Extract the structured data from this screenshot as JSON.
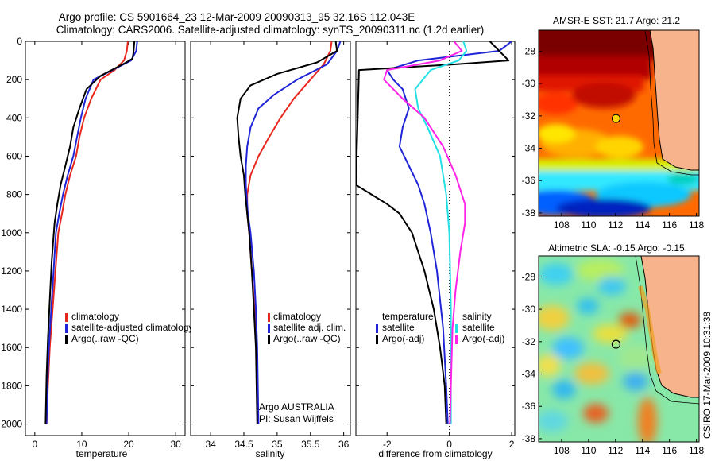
{
  "figure": {
    "title_line1": "Argo profile: CS 5901664_23 12-Mar-2009 20090313_95 32.16S 112.043E",
    "title_line2": "Climatology: CARS2006. Satellite-adjusted climatology: synTS_20090311.nc (1.2d earlier)",
    "side_stamp": "CSIRO 17-Mar-2009 10:31:38",
    "credit_line1": "Argo AUSTRALIA",
    "credit_line2": "PI: Susan Wijffels"
  },
  "colors": {
    "climatology": "#e8281e",
    "satellite": "#1f25d6",
    "argo": "#000000",
    "sat_salinity": "#22e0e6",
    "argo_adj_salinity": "#ff22e8",
    "land": "#f7b48c",
    "coast": "#000000"
  },
  "chart_data": [
    {
      "type": "line",
      "id": "temperature",
      "xlabel": "temperature",
      "ylabel": "",
      "xlim": [
        -2,
        32
      ],
      "ylim": [
        2060,
        0
      ],
      "xticks": [
        0,
        10,
        20,
        30
      ],
      "yticks": [
        0,
        200,
        400,
        600,
        800,
        1000,
        1200,
        1400,
        1600,
        1800,
        2000
      ],
      "series": [
        {
          "name": "climatology",
          "color_key": "climatology",
          "x": [
            19.8,
            19.6,
            19.0,
            17.0,
            14.0,
            12.0,
            10.5,
            9.5,
            8.8,
            7.5,
            6.5,
            5.8,
            5.0,
            4.4,
            3.8,
            3.2,
            2.8,
            2.5
          ],
          "y": [
            0,
            50,
            100,
            150,
            200,
            300,
            400,
            500,
            600,
            700,
            800,
            900,
            1000,
            1200,
            1400,
            1600,
            1800,
            2000
          ]
        },
        {
          "name": "satellite-adjusted climatology",
          "color_key": "satellite",
          "x": [
            21.8,
            21.6,
            20.5,
            16.5,
            12.5,
            10.8,
            9.8,
            9.0,
            8.2,
            7.0,
            6.0,
            5.2,
            4.5,
            4.0,
            3.5,
            3.0,
            2.7,
            2.5
          ],
          "y": [
            0,
            50,
            100,
            150,
            200,
            300,
            400,
            500,
            600,
            700,
            800,
            900,
            1000,
            1200,
            1400,
            1600,
            1800,
            2000
          ]
        },
        {
          "name": "Argo(..raw -QC)",
          "color_key": "argo",
          "x": [
            21.2,
            21.0,
            20.8,
            19.5,
            14.0,
            11.0,
            9.5,
            8.2,
            7.5,
            6.5,
            5.5,
            4.8,
            4.2,
            3.6,
            3.2,
            2.8,
            2.5,
            2.3
          ],
          "y": [
            0,
            60,
            90,
            110,
            180,
            250,
            350,
            450,
            550,
            650,
            750,
            850,
            950,
            1150,
            1350,
            1550,
            1750,
            2000
          ]
        }
      ],
      "legend": {
        "placement": "bottom-right"
      }
    },
    {
      "type": "line",
      "id": "salinity",
      "xlabel": "salinity",
      "ylabel": "",
      "xlim": [
        33.7,
        36.1
      ],
      "ylim": [
        2060,
        0
      ],
      "xticks": [
        34,
        34.5,
        35,
        35.5,
        36
      ],
      "yticks": [
        0,
        200,
        400,
        600,
        800,
        1000,
        1200,
        1400,
        1600,
        1800,
        2000
      ],
      "series": [
        {
          "name": "climatology",
          "color_key": "climatology",
          "x": [
            35.82,
            35.8,
            35.7,
            35.5,
            35.25,
            35.05,
            34.88,
            34.72,
            34.6,
            34.55,
            34.55,
            34.58,
            34.62,
            34.66,
            34.69,
            34.71
          ],
          "y": [
            0,
            50,
            120,
            200,
            300,
            400,
            500,
            600,
            700,
            800,
            900,
            1000,
            1200,
            1400,
            1600,
            2000
          ]
        },
        {
          "name": "satellite adj. clim.",
          "color_key": "satellite",
          "x": [
            35.95,
            35.9,
            35.75,
            35.3,
            34.95,
            34.72,
            34.6,
            34.55,
            34.53,
            34.53,
            34.56,
            34.6,
            34.65,
            34.68,
            34.7,
            34.72
          ],
          "y": [
            0,
            50,
            120,
            200,
            280,
            350,
            450,
            550,
            650,
            750,
            900,
            1000,
            1200,
            1400,
            1600,
            2000
          ]
        },
        {
          "name": "Argo(..raw -QC)",
          "color_key": "argo",
          "x": [
            35.88,
            35.9,
            35.6,
            35.0,
            34.6,
            34.45,
            34.4,
            34.42,
            34.45,
            34.5,
            34.52,
            34.55,
            34.58,
            34.62,
            34.65,
            34.68,
            34.7
          ],
          "y": [
            0,
            50,
            110,
            170,
            230,
            300,
            400,
            500,
            600,
            700,
            800,
            900,
            1000,
            1200,
            1400,
            1600,
            2000
          ]
        }
      ],
      "legend": {
        "placement": "bottom-right"
      }
    },
    {
      "type": "line",
      "id": "difference",
      "xlabel": "difference from climatology",
      "ylabel": "",
      "xlim": [
        -3,
        2.1
      ],
      "ylim": [
        2060,
        0
      ],
      "xticks": [
        -2,
        0,
        2
      ],
      "yticks": [
        0,
        200,
        400,
        600,
        800,
        1000,
        1200,
        1400,
        1600,
        1800,
        2000
      ],
      "reference_x": 0,
      "series": [
        {
          "name": "satellite",
          "group": "temperature",
          "color_key": "satellite",
          "x": [
            2.0,
            1.6,
            -1.0,
            -2.0,
            -1.8,
            -1.5,
            -1.3,
            -1.5,
            -1.6,
            -1.3,
            -1.0,
            -0.8,
            -0.6,
            -0.4,
            -0.2,
            -0.1,
            -0.05
          ],
          "y": [
            0,
            50,
            100,
            150,
            200,
            250,
            350,
            450,
            550,
            650,
            750,
            850,
            1000,
            1200,
            1500,
            1800,
            2000
          ]
        },
        {
          "name": "Argo(-adj)",
          "group": "temperature",
          "color_key": "argo",
          "x": [
            1.3,
            1.9,
            0.2,
            -2.9,
            -3.0,
            -2.5,
            -2.0,
            -1.6,
            -1.2,
            -0.8,
            -0.5,
            -0.3,
            -0.15,
            -0.1
          ],
          "y": [
            0,
            100,
            120,
            150,
            750,
            800,
            850,
            900,
            1000,
            1200,
            1400,
            1600,
            1800,
            2000
          ]
        },
        {
          "name": "satellite",
          "group": "salinity",
          "color_key": "sat_salinity",
          "x": [
            0.45,
            0.55,
            0.3,
            -0.6,
            -1.1,
            -1.0,
            -0.7,
            -0.3,
            -0.1,
            0.0,
            0.05,
            0.05,
            0.05
          ],
          "y": [
            0,
            50,
            100,
            150,
            250,
            350,
            450,
            600,
            800,
            1000,
            1400,
            1800,
            2000
          ]
        },
        {
          "name": "Argo(-adj)",
          "group": "salinity",
          "color_key": "argo_adj_salinity",
          "x": [
            0.15,
            0.4,
            -0.3,
            -2.0,
            -2.1,
            -1.5,
            -0.8,
            -0.2,
            0.2,
            0.5,
            0.5,
            0.35,
            0.2,
            0.1,
            0.05,
            0.02
          ],
          "y": [
            0,
            50,
            100,
            150,
            200,
            300,
            400,
            550,
            700,
            850,
            950,
            1100,
            1300,
            1500,
            1800,
            2000
          ]
        }
      ],
      "legend": {
        "placement": "bottom",
        "group_titles": [
          "temperature",
          "salinity"
        ]
      }
    },
    {
      "type": "heatmap",
      "id": "sst_map",
      "title": "AMSR-E SST: 21.7 Argo: 21.2",
      "xlim": [
        106.3,
        118.2
      ],
      "ylim": [
        -38.2,
        -26.7
      ],
      "xticks": [
        108,
        110,
        112,
        114,
        116,
        118
      ],
      "yticks": [
        -28,
        -30,
        -32,
        -34,
        -36,
        -38
      ],
      "marker": {
        "lon": 112.04,
        "lat": -32.16
      }
    },
    {
      "type": "heatmap",
      "id": "sla_map",
      "title": "Altimetric SLA: -0.15 Argo: -0.15",
      "xlim": [
        106.3,
        118.2
      ],
      "ylim": [
        -38.2,
        -26.7
      ],
      "xticks": [
        108,
        110,
        112,
        114,
        116,
        118
      ],
      "yticks": [
        -28,
        -30,
        -32,
        -34,
        -36,
        -38
      ],
      "marker": {
        "lon": 112.04,
        "lat": -32.16
      }
    }
  ]
}
